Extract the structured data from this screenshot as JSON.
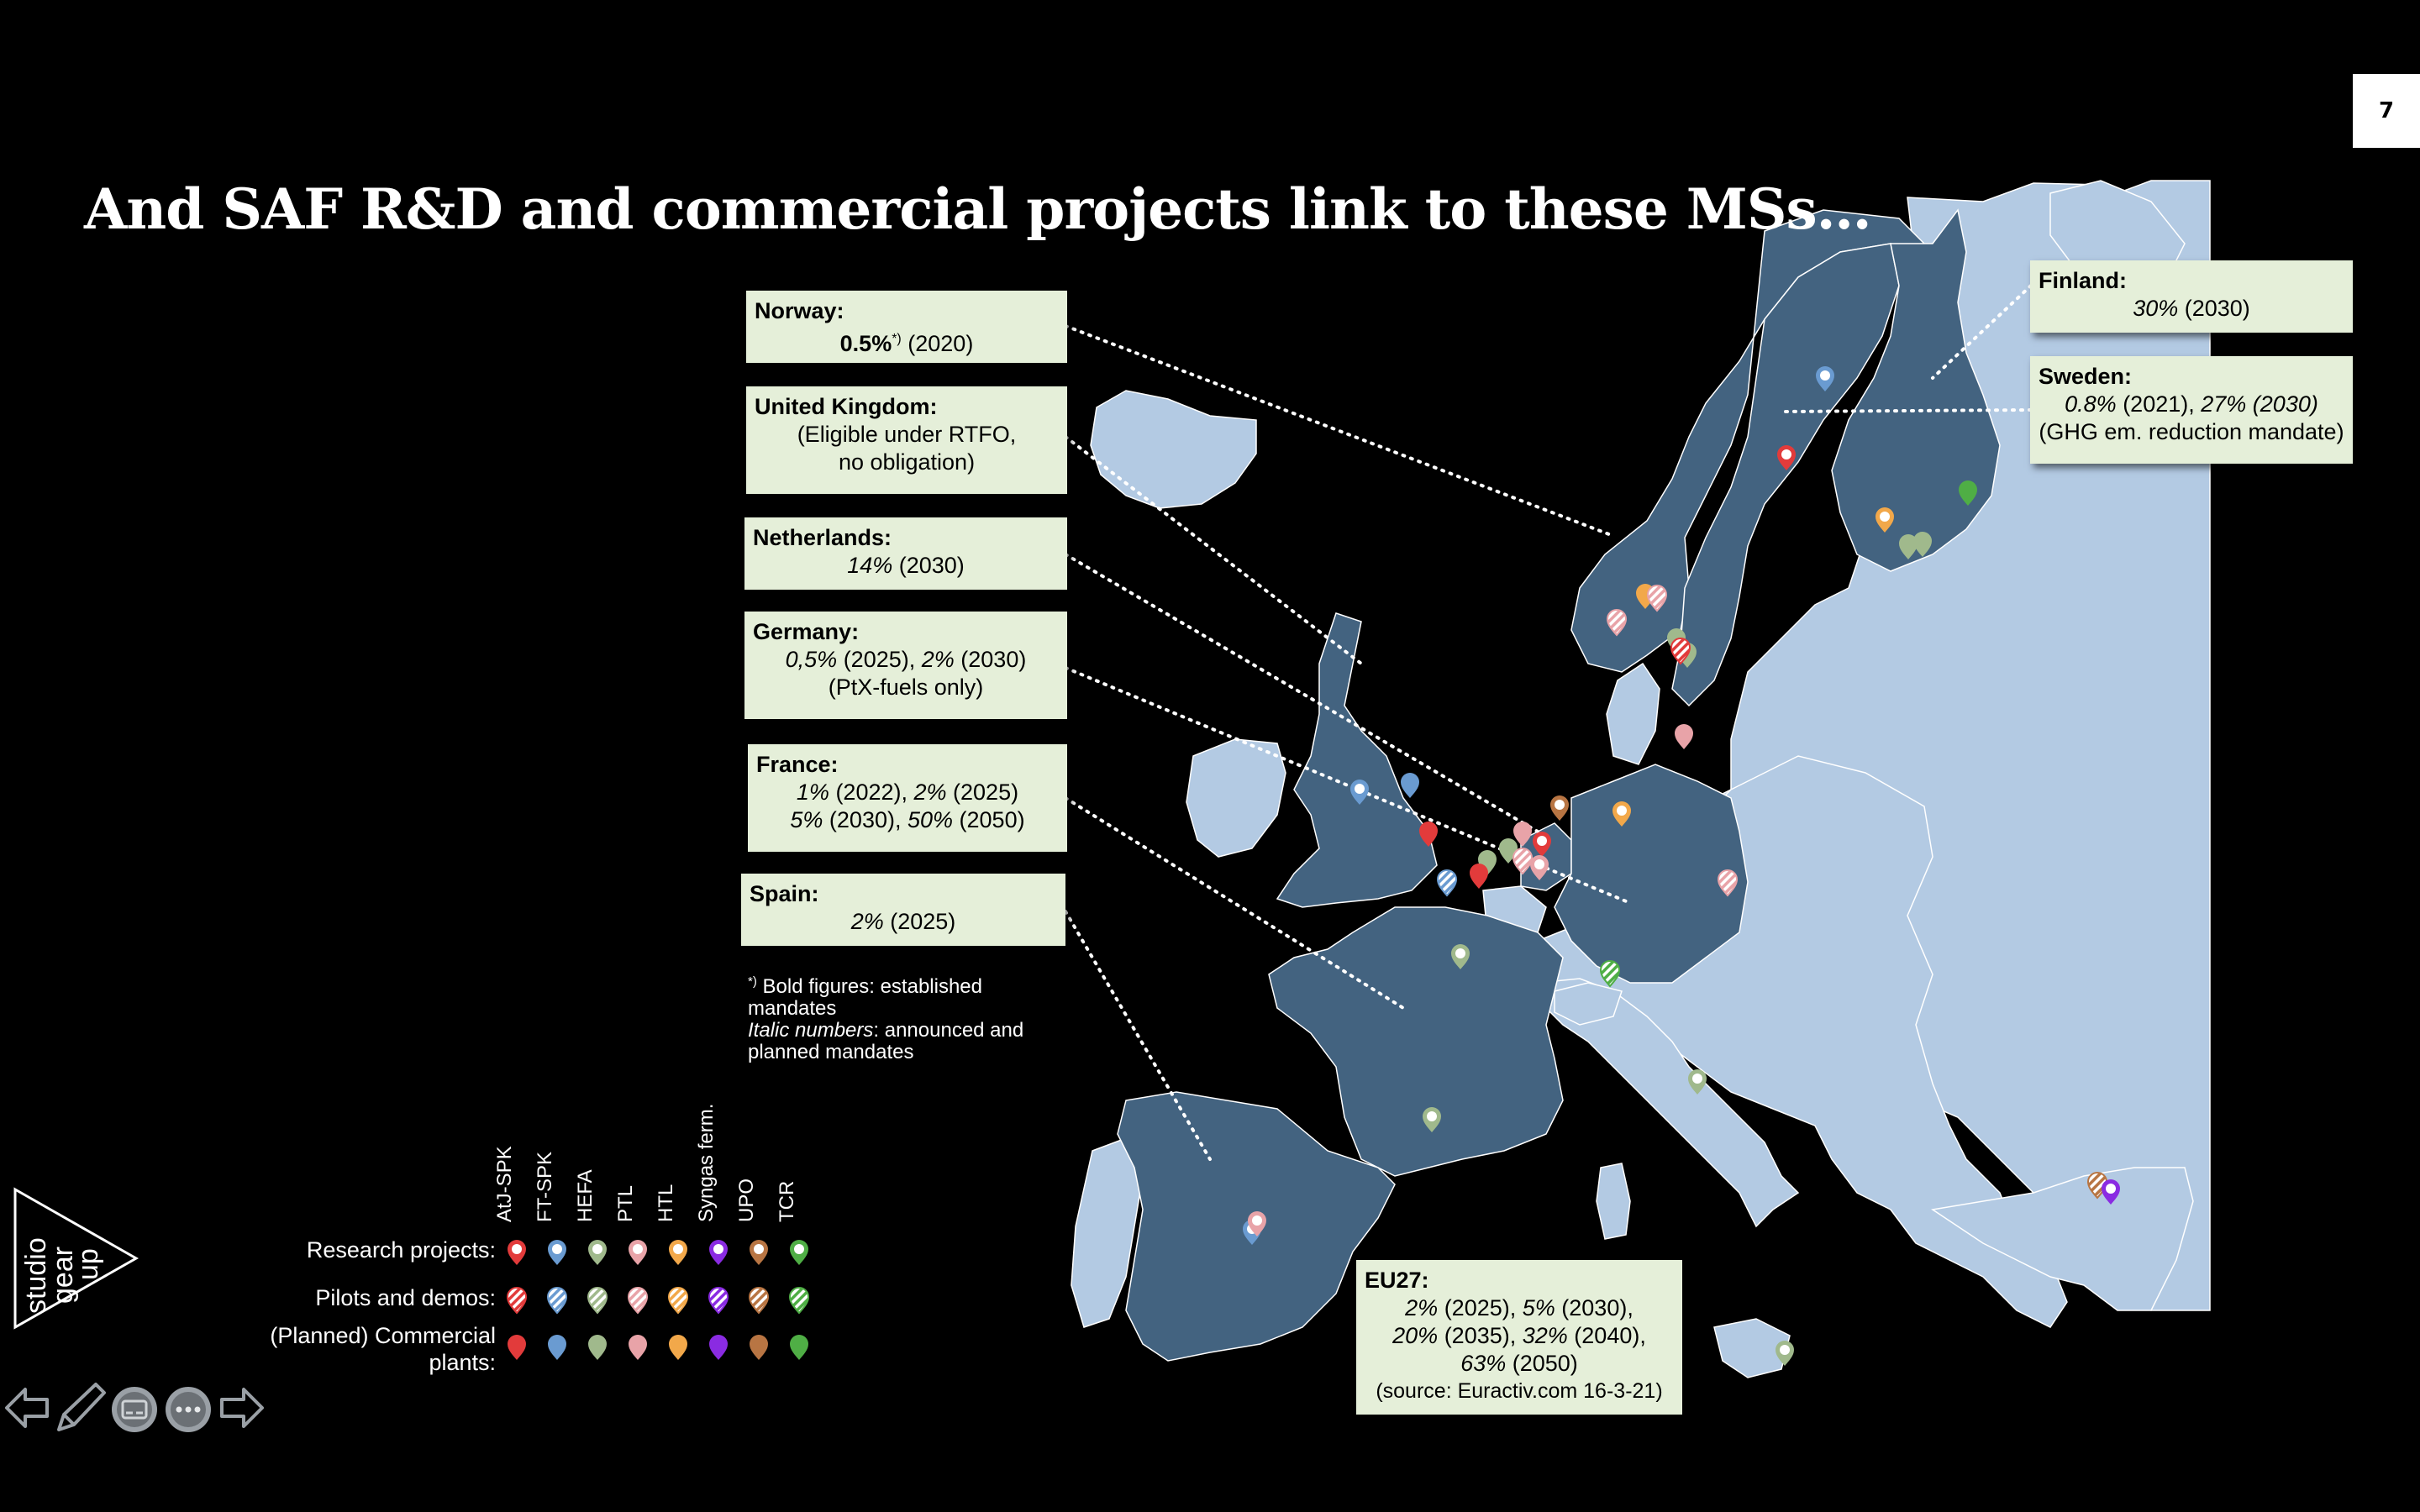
{
  "slide": {
    "title": "And SAF R&D and commercial projects link to these MSs…",
    "page_number": "7"
  },
  "colors": {
    "background": "#000000",
    "ms_fill": "#436380",
    "other_fill": "#b3cae3",
    "box_fill": "#e5efd9",
    "AtJ-SPK": "#e23b3b",
    "FT-SPK": "#6a9bd1",
    "HEFA": "#a0b98c",
    "PTL": "#e8a3a8",
    "HTL": "#f2a84a",
    "Syngas ferm.": "#8a2be2",
    "UPO": "#b87543",
    "TCR": "#4fae45"
  },
  "countries": {
    "norway": {
      "name": "Norway",
      "line1_bold": "0.5%",
      "line1_sup": "*)",
      "line1_rest": " (2020)"
    },
    "uk": {
      "name": "United Kingdom",
      "line1": "(Eligible under RTFO,",
      "line2": "no obligation)"
    },
    "netherlands": {
      "name": "Netherlands",
      "line1_it": "14%",
      "line1_rest": " (2030)"
    },
    "germany": {
      "name": "Germany",
      "a_it": "0,5%",
      "a_rest": " (2025), ",
      "b_it": "2%",
      "b_rest": " (2030)",
      "line2": "(PtX-fuels only)"
    },
    "france": {
      "name": "France",
      "a_it": "1%",
      "a_rest": " (2022), ",
      "b_it": "2%",
      "b_rest": " (2025)",
      "c_it": "5%",
      "c_rest": " (2030), ",
      "d_it": "50%",
      "d_rest": " (2050)"
    },
    "spain": {
      "name": "Spain",
      "a_it": "2%",
      "a_rest": " (2025)"
    },
    "finland": {
      "name": "Finland",
      "a_it": "30%",
      "a_rest": " (2030)"
    },
    "sweden": {
      "name": "Sweden",
      "a_it": "0.8%",
      "a_rest": " (2021), ",
      "b_it": "27% (2030)",
      "line2": "(GHG em. reduction mandate)"
    },
    "eu27": {
      "name": "EU27",
      "a_it": "2%",
      "a_rest": " (2025), ",
      "b_it": "5%",
      "b_rest": " (2030),",
      "c_it": "20%",
      "c_rest": " (2035), ",
      "d_it": "32%",
      "d_rest": " (2040),",
      "e_it": "63%",
      "e_rest": " (2050)",
      "source": "(source: Euractiv.com 16-3-21)"
    }
  },
  "footnote": {
    "sup": "*)",
    "line1": " Bold figures: established",
    "line2": "mandates",
    "line3_it": "Italic numbers",
    "line3_rest": ": announced and",
    "line4": "planned mandates"
  },
  "legend": {
    "columns": [
      "AtJ-SPK",
      "FT-SPK",
      "HEFA",
      "PTL",
      "HTL",
      "Syngas ferm.",
      "UPO",
      "TCR"
    ],
    "rows": [
      {
        "label": "Research projects:",
        "style": "outline"
      },
      {
        "label": "Pilots and demos:",
        "style": "hatched"
      },
      {
        "label_line1": "(Planned) Commercial",
        "label_line2": "plants:",
        "style": "filled"
      }
    ]
  },
  "logo": {
    "line1": "studio",
    "line2": "gear",
    "line3": "up"
  },
  "nav": {
    "icons": [
      "back-arrow-icon",
      "pen-icon",
      "captions-icon",
      "more-icon",
      "forward-arrow-icon"
    ]
  }
}
